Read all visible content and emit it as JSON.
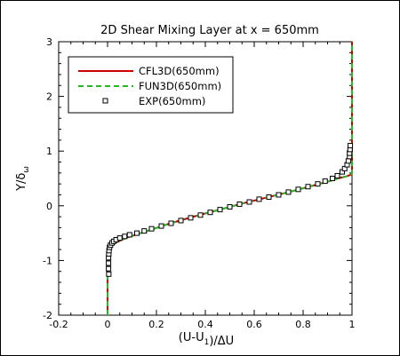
{
  "chart_data": {
    "type": "line",
    "title": "2D Shear Mixing Layer at x = 650mm",
    "xlabel": "(U-U1)/ΔU",
    "ylabel": "Y/δω",
    "xlim": [
      -0.2,
      1.0
    ],
    "ylim": [
      -2,
      3
    ],
    "xticks": [
      -0.2,
      0,
      0.2,
      0.4,
      0.6,
      0.8,
      1
    ],
    "xtick_labels": [
      "-0.2",
      "0",
      "0.2",
      "0.4",
      "0.6",
      "0.8",
      "1"
    ],
    "yticks": [
      -2,
      -1,
      0,
      1,
      2,
      3
    ],
    "ytick_labels": [
      "-2",
      "-1",
      "0",
      "1",
      "2",
      "3"
    ],
    "grid": false,
    "legend_position": "top-left",
    "series": [
      {
        "name": "CFL3D(650mm)",
        "style": "solid",
        "color": "#cc0000",
        "x": [
          0,
          0,
          0.003,
          0.008,
          0.02,
          0.04,
          0.08,
          0.15,
          0.25,
          0.35,
          0.45,
          0.55,
          0.65,
          0.75,
          0.85,
          0.9,
          0.93,
          0.95,
          0.97,
          0.985,
          0.995,
          1,
          1
        ],
        "y": [
          -2,
          -1.2,
          -0.95,
          -0.82,
          -0.72,
          -0.66,
          -0.58,
          -0.48,
          -0.33,
          -0.2,
          -0.08,
          0.04,
          0.15,
          0.26,
          0.38,
          0.44,
          0.48,
          0.51,
          0.53,
          0.55,
          0.57,
          0.6,
          3
        ]
      },
      {
        "name": "FUN3D(650mm)",
        "style": "dashed",
        "color": "#22bb22",
        "x": [
          0,
          0,
          0.003,
          0.008,
          0.02,
          0.04,
          0.08,
          0.15,
          0.25,
          0.35,
          0.45,
          0.55,
          0.65,
          0.75,
          0.85,
          0.9,
          0.93,
          0.95,
          0.97,
          0.985,
          0.995,
          1,
          1
        ],
        "y": [
          -2,
          -1.2,
          -0.95,
          -0.82,
          -0.72,
          -0.66,
          -0.58,
          -0.48,
          -0.33,
          -0.2,
          -0.08,
          0.04,
          0.15,
          0.26,
          0.38,
          0.44,
          0.48,
          0.51,
          0.53,
          0.55,
          0.57,
          0.6,
          3
        ]
      },
      {
        "name": "EXP(650mm)",
        "style": "markers",
        "marker": "square",
        "color": "#000000",
        "x": [
          0.005,
          0.004,
          0.004,
          0.004,
          0.005,
          0.006,
          0.008,
          0.012,
          0.018,
          0.025,
          0.035,
          0.05,
          0.07,
          0.09,
          0.12,
          0.15,
          0.18,
          0.22,
          0.26,
          0.3,
          0.34,
          0.38,
          0.42,
          0.46,
          0.5,
          0.54,
          0.58,
          0.62,
          0.66,
          0.7,
          0.74,
          0.78,
          0.82,
          0.86,
          0.89,
          0.92,
          0.94,
          0.96,
          0.97,
          0.98,
          0.985,
          0.99,
          0.99,
          0.992,
          0.993
        ],
        "y": [
          -1.25,
          -1.15,
          -1.05,
          -0.95,
          -0.88,
          -0.82,
          -0.76,
          -0.72,
          -0.68,
          -0.65,
          -0.62,
          -0.59,
          -0.56,
          -0.53,
          -0.5,
          -0.46,
          -0.42,
          -0.37,
          -0.32,
          -0.27,
          -0.22,
          -0.17,
          -0.12,
          -0.07,
          -0.02,
          0.03,
          0.07,
          0.12,
          0.16,
          0.2,
          0.25,
          0.3,
          0.35,
          0.4,
          0.45,
          0.5,
          0.55,
          0.62,
          0.68,
          0.75,
          0.82,
          0.9,
          0.96,
          1.03,
          1.1
        ]
      }
    ]
  }
}
